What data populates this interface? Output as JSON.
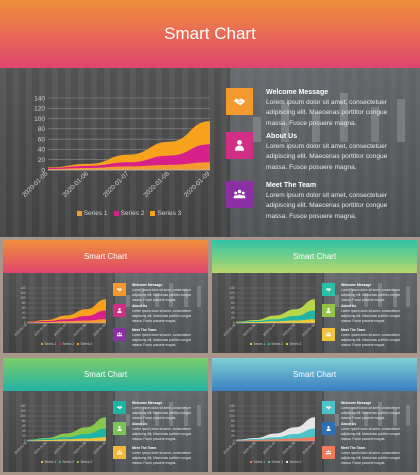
{
  "header": {
    "title": "Smart Chart"
  },
  "chart_data": {
    "type": "area",
    "x": [
      "2020-01-05",
      "2020-01-06",
      "2020-01-07",
      "2020-01-08",
      "2020-01-09"
    ],
    "ylim": [
      0,
      140
    ],
    "yticks": [
      0,
      20,
      40,
      60,
      80,
      100,
      120,
      140
    ],
    "series": [
      {
        "name": "Series 1",
        "values": [
          2,
          4,
          7,
          10,
          15
        ]
      },
      {
        "name": "Series 2",
        "values": [
          4,
          8,
          15,
          28,
          50
        ]
      },
      {
        "name": "Series 3",
        "values": [
          5,
          12,
          30,
          55,
          95
        ]
      }
    ],
    "legend": "bottom"
  },
  "features": [
    {
      "title": "Welcome Message",
      "body": "Lorem ipsum dolor sit amet, consectetuer adipiscing elit. Maecenas porttitor congue massa. Fusce posuere magna.",
      "icon": "handshake-icon"
    },
    {
      "title": "About Us",
      "body": "Lorem ipsum dolor sit amet, consectetuer adipiscing elit. Maecenas porttitor congue massa. Fusce posuere magna.",
      "icon": "person-icon"
    },
    {
      "title": "Meet The Team",
      "body": "Lorem ipsum dolor sit amet, consectetuer adipiscing elit. Maecenas porttitor congue massa. Fusce posuere magna.",
      "icon": "team-icon"
    }
  ],
  "themes": [
    {
      "name": "warm",
      "header_gradient": [
        "#f08f3b",
        "#e0456d"
      ],
      "series_colors": [
        "#f29a2e",
        "#d8208a",
        "#f6a21d"
      ],
      "icon_colors": [
        "#f29a2e",
        "#d12f86",
        "#8b2fa5"
      ]
    },
    {
      "name": "warm",
      "header_gradient": [
        "#f08f3b",
        "#e0456d"
      ],
      "series_colors": [
        "#f29a2e",
        "#d8208a",
        "#f6a21d"
      ],
      "icon_colors": [
        "#f29a2e",
        "#d12f86",
        "#8b2fa5"
      ]
    },
    {
      "name": "teal-green",
      "header_gradient": [
        "#2ec3a6",
        "#b8d86a"
      ],
      "series_colors": [
        "#e8c93a",
        "#22b5a4",
        "#b9d54a"
      ],
      "icon_colors": [
        "#2bbfa5",
        "#92c44a",
        "#f0c33a"
      ]
    },
    {
      "name": "green-teal",
      "header_gradient": [
        "#7ccd6a",
        "#22b3a3"
      ],
      "series_colors": [
        "#f0c33a",
        "#1fb5a5",
        "#86c84e"
      ],
      "icon_colors": [
        "#1fb5a5",
        "#7bc556",
        "#f0b73a"
      ]
    },
    {
      "name": "blue-teal",
      "header_gradient": [
        "#7fd0d6",
        "#3a7fc2"
      ],
      "series_colors": [
        "#f07a5a",
        "#4fc2c9",
        "#e5e5e5"
      ],
      "icon_colors": [
        "#4fc2c9",
        "#2d6eb5",
        "#f07a5a"
      ]
    }
  ]
}
